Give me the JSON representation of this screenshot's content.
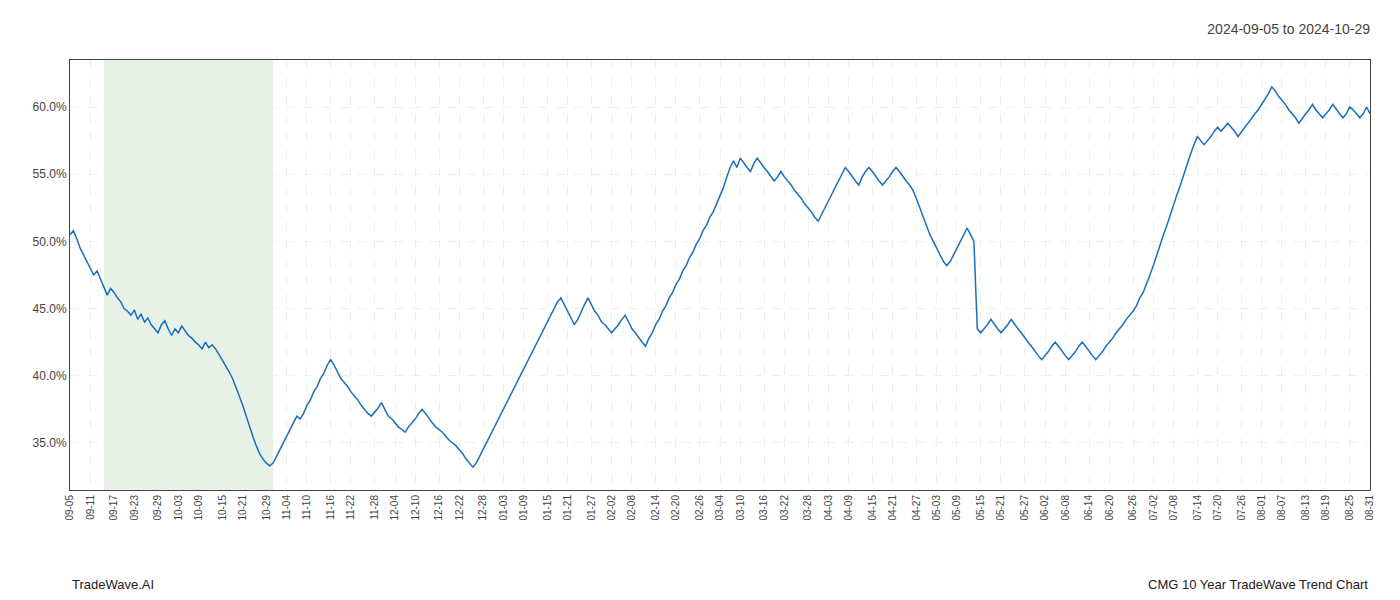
{
  "chart_data": {
    "type": "line",
    "title": "2024-09-05 to 2024-10-29",
    "annotations": [
      "TradeWave.AI",
      "CMG 10 Year TradeWave Trend Chart"
    ],
    "categories": [
      "09-05",
      null,
      null,
      null,
      null,
      null,
      "09-11",
      null,
      null,
      null,
      null,
      null,
      null,
      "09-17",
      null,
      null,
      null,
      null,
      null,
      "09-23",
      null,
      null,
      null,
      null,
      null,
      null,
      "09-29",
      null,
      null,
      null,
      null,
      null,
      "10-03",
      null,
      null,
      null,
      null,
      null,
      "10-09",
      null,
      null,
      null,
      null,
      null,
      null,
      "10-15",
      null,
      null,
      null,
      null,
      null,
      "10-21",
      null,
      null,
      null,
      null,
      null,
      null,
      "10-29",
      null,
      null,
      null,
      null,
      null,
      "11-04",
      null,
      null,
      null,
      null,
      null,
      "11-10",
      null,
      null,
      null,
      null,
      null,
      null,
      "11-16",
      null,
      null,
      null,
      null,
      null,
      "11-22",
      null,
      null,
      null,
      null,
      null,
      null,
      "11-28",
      null,
      null,
      null,
      null,
      null,
      "12-04",
      null,
      null,
      null,
      null,
      null,
      "12-10",
      null,
      null,
      null,
      null,
      null,
      null,
      "12-16",
      null,
      null,
      null,
      null,
      null,
      "12-22",
      null,
      null,
      null,
      null,
      null,
      null,
      "12-28",
      null,
      null,
      null,
      null,
      null,
      "01-03",
      null,
      null,
      null,
      null,
      null,
      "01-09",
      null,
      null,
      null,
      null,
      null,
      null,
      "01-15",
      null,
      null,
      null,
      null,
      null,
      "01-21",
      null,
      null,
      null,
      null,
      null,
      null,
      "01-27",
      null,
      null,
      null,
      null,
      null,
      "02-02",
      null,
      null,
      null,
      null,
      null,
      "02-08",
      null,
      null,
      null,
      null,
      null,
      null,
      "02-14",
      null,
      null,
      null,
      null,
      null,
      "02-20",
      null,
      null,
      null,
      null,
      null,
      null,
      "02-26",
      null,
      null,
      null,
      null,
      null,
      "03-04",
      null,
      null,
      null,
      null,
      null,
      "03-10",
      null,
      null,
      null,
      null,
      null,
      null,
      "03-16",
      null,
      null,
      null,
      null,
      null,
      "03-22",
      null,
      null,
      null,
      null,
      null,
      null,
      "03-28",
      null,
      null,
      null,
      null,
      null,
      "04-03",
      null,
      null,
      null,
      null,
      null,
      "04-09",
      null,
      null,
      null,
      null,
      null,
      null,
      "04-15",
      null,
      null,
      null,
      null,
      null,
      "04-21",
      null,
      null,
      null,
      null,
      null,
      null,
      "04-27",
      null,
      null,
      null,
      null,
      null,
      "05-03",
      null,
      null,
      null,
      null,
      null,
      "05-09",
      null,
      null,
      null,
      null,
      null,
      null,
      "05-15",
      null,
      null,
      null,
      null,
      null,
      "05-21",
      null,
      null,
      null,
      null,
      null,
      null,
      "05-27",
      null,
      null,
      null,
      null,
      null,
      "06-02",
      null,
      null,
      null,
      null,
      null,
      "06-08",
      null,
      null,
      null,
      null,
      null,
      null,
      "06-14",
      null,
      null,
      null,
      null,
      null,
      "06-20",
      null,
      null,
      null,
      null,
      null,
      null,
      "06-26",
      null,
      null,
      null,
      null,
      null,
      "07-02",
      null,
      null,
      null,
      null,
      null,
      "07-08",
      null,
      null,
      null,
      null,
      null,
      null,
      "07-14",
      null,
      null,
      null,
      null,
      null,
      "07-20",
      null,
      null,
      null,
      null,
      null,
      null,
      "07-26",
      null,
      null,
      null,
      null,
      null,
      "08-01",
      null,
      null,
      null,
      null,
      null,
      "08-07",
      null,
      null,
      null,
      null,
      null,
      null,
      "08-13",
      null,
      null,
      null,
      null,
      null,
      "08-19",
      null,
      null,
      null,
      null,
      null,
      null,
      "08-25",
      null,
      null,
      null,
      null,
      null,
      "08-31"
    ],
    "values": [
      50.5,
      50.8,
      50.2,
      49.5,
      49.0,
      48.5,
      48.0,
      47.5,
      47.8,
      47.2,
      46.5,
      46.0,
      46.5,
      46.2,
      45.8,
      45.5,
      45.0,
      44.8,
      44.5,
      44.9,
      44.2,
      44.6,
      44.0,
      44.3,
      43.8,
      43.5,
      43.2,
      43.8,
      44.1,
      43.5,
      43.0,
      43.5,
      43.2,
      43.7,
      43.3,
      43.0,
      42.8,
      42.5,
      42.3,
      42.0,
      42.5,
      42.1,
      42.3,
      42.0,
      41.6,
      41.2,
      40.8,
      40.3,
      39.8,
      39.2,
      38.5,
      37.8,
      37.0,
      36.2,
      35.5,
      34.8,
      34.2,
      33.8,
      33.5,
      33.3,
      33.5,
      34.0,
      34.5,
      35.0,
      35.5,
      36.0,
      36.5,
      37.0,
      36.8,
      37.2,
      37.8,
      38.2,
      38.8,
      39.2,
      39.8,
      40.2,
      40.8,
      41.2,
      40.8,
      40.3,
      39.8,
      39.5,
      39.2,
      38.8,
      38.5,
      38.2,
      37.8,
      37.5,
      37.2,
      37.0,
      37.3,
      37.6,
      38.0,
      37.5,
      37.0,
      36.8,
      36.5,
      36.2,
      36.0,
      35.8,
      36.2,
      36.5,
      36.8,
      37.2,
      37.5,
      37.2,
      36.8,
      36.5,
      36.2,
      36.0,
      35.8,
      35.5,
      35.2,
      35.0,
      34.8,
      34.5,
      34.2,
      33.8,
      33.5,
      33.2,
      33.5,
      34.0,
      34.5,
      35.0,
      35.5,
      36.0,
      36.5,
      37.0,
      37.5,
      38.0,
      38.5,
      39.0,
      39.5,
      40.0,
      40.5,
      41.0,
      41.5,
      42.0,
      42.5,
      43.0,
      43.5,
      44.0,
      44.5,
      45.0,
      45.5,
      45.8,
      45.3,
      44.8,
      44.3,
      43.8,
      44.2,
      44.8,
      45.3,
      45.8,
      45.3,
      44.8,
      44.5,
      44.0,
      43.8,
      43.5,
      43.2,
      43.5,
      43.8,
      44.2,
      44.5,
      44.0,
      43.5,
      43.2,
      42.8,
      42.5,
      42.2,
      42.8,
      43.2,
      43.8,
      44.2,
      44.8,
      45.2,
      45.8,
      46.2,
      46.8,
      47.2,
      47.8,
      48.2,
      48.8,
      49.2,
      49.8,
      50.2,
      50.8,
      51.2,
      51.8,
      52.2,
      52.8,
      53.5,
      54.0,
      54.8,
      55.5,
      56.0,
      55.5,
      56.2,
      55.8,
      55.5,
      55.2,
      55.8,
      56.2,
      55.8,
      55.5,
      55.2,
      54.8,
      54.5,
      54.8,
      55.2,
      54.8,
      54.5,
      54.2,
      53.8,
      53.5,
      53.2,
      52.8,
      52.5,
      52.2,
      51.8,
      51.5,
      52.0,
      52.5,
      53.0,
      53.5,
      54.0,
      54.5,
      55.0,
      55.5,
      55.2,
      54.8,
      54.5,
      54.2,
      54.8,
      55.2,
      55.5,
      55.2,
      54.8,
      54.5,
      54.2,
      54.5,
      54.8,
      55.2,
      55.5,
      55.2,
      54.8,
      54.5,
      54.2,
      53.8,
      53.2,
      52.5,
      51.8,
      51.2,
      50.5,
      50.0,
      49.5,
      49.0,
      48.5,
      48.2,
      48.5,
      49.0,
      49.5,
      50.0,
      50.5,
      51.0,
      50.5,
      50.0,
      43.5,
      43.2,
      43.5,
      43.8,
      44.2,
      43.8,
      43.5,
      43.2,
      43.5,
      43.8,
      44.2,
      43.8,
      43.5,
      43.2,
      42.8,
      42.5,
      42.2,
      41.8,
      41.5,
      41.2,
      41.5,
      41.8,
      42.2,
      42.5,
      42.2,
      41.8,
      41.5,
      41.2,
      41.5,
      41.8,
      42.2,
      42.5,
      42.2,
      41.8,
      41.5,
      41.2,
      41.5,
      41.8,
      42.2,
      42.5,
      42.8,
      43.2,
      43.5,
      43.8,
      44.2,
      44.5,
      44.8,
      45.2,
      45.8,
      46.2,
      46.8,
      47.5,
      48.2,
      49.0,
      49.8,
      50.5,
      51.2,
      52.0,
      52.8,
      53.5,
      54.2,
      55.0,
      55.8,
      56.5,
      57.2,
      57.8,
      57.5,
      57.2,
      57.5,
      57.8,
      58.2,
      58.5,
      58.2,
      58.5,
      58.8,
      58.5,
      58.2,
      57.8,
      58.2,
      58.5,
      58.8,
      59.2,
      59.5,
      59.8,
      60.2,
      60.5,
      61.0,
      61.5,
      61.2,
      60.8,
      60.5,
      60.2,
      59.8,
      59.5,
      59.2,
      58.8,
      59.2,
      59.5,
      59.8,
      60.2,
      59.8,
      59.5,
      59.2,
      59.5,
      59.8,
      60.2,
      59.8,
      59.5,
      59.2,
      59.5,
      60.0,
      59.8,
      59.5,
      59.2,
      59.5,
      60.0,
      59.5
    ],
    "color": "#1a6fbd",
    "highlight": {
      "from": 10,
      "to": 60,
      "color": "#d4e8d4"
    },
    "ylim": [
      31.5,
      63.5
    ],
    "yticks": [
      {
        "value": 35.0,
        "label": "35.0%"
      },
      {
        "value": 40.0,
        "label": "40.0%"
      },
      {
        "value": 45.0,
        "label": "45.0%"
      },
      {
        "value": 50.0,
        "label": "50.0%"
      },
      {
        "value": 55.0,
        "label": "55.0%"
      },
      {
        "value": 60.0,
        "label": "60.0%"
      }
    ],
    "grid": true
  }
}
